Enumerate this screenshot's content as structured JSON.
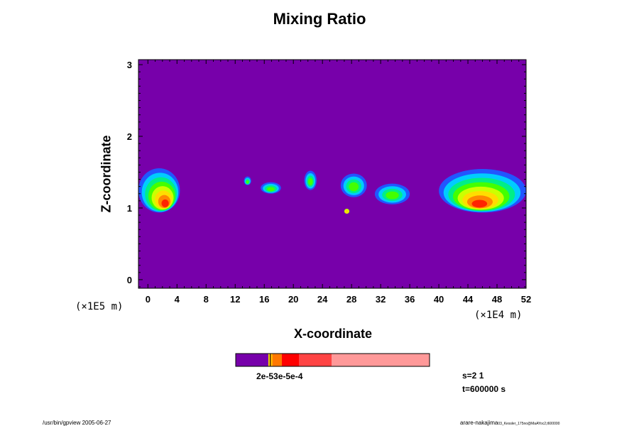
{
  "chart_data": {
    "type": "heatmap",
    "title": "Mixing Ratio",
    "xlabel": "X-coordinate",
    "ylabel": "Z-coordinate",
    "x_scale_label": "(×1E4 m)",
    "y_scale_label": "(×1E5 m)",
    "xlim": [
      -1.3,
      52
    ],
    "ylim": [
      -0.12,
      3.07
    ],
    "x_ticks": [
      "0",
      "4",
      "8",
      "12",
      "16",
      "20",
      "24",
      "28",
      "32",
      "36",
      "40",
      "44",
      "48",
      "52"
    ],
    "y_ticks": [
      "0",
      "1",
      "2",
      "3"
    ],
    "background_value": 0,
    "regions": [
      {
        "x_range": [
          -1.3,
          4.4
        ],
        "z_range": [
          0.92,
          1.57
        ],
        "peak": "1e-3"
      },
      {
        "x_range": [
          13.2,
          14.2
        ],
        "z_range": [
          1.32,
          1.44
        ],
        "peak": "1e-5"
      },
      {
        "x_range": [
          15.5,
          18.3
        ],
        "z_range": [
          1.2,
          1.36
        ],
        "peak": "1e-5"
      },
      {
        "x_range": [
          21.5,
          23.2
        ],
        "z_range": [
          1.25,
          1.52
        ],
        "peak": "1e-5"
      },
      {
        "x_range": [
          26.5,
          30.1
        ],
        "z_range": [
          1.15,
          1.48
        ],
        "peak": "1e-5"
      },
      {
        "x_range": [
          27.0,
          27.7
        ],
        "z_range": [
          0.92,
          0.99
        ],
        "peak": "2e-6"
      },
      {
        "x_range": [
          31.2,
          36.0
        ],
        "z_range": [
          1.05,
          1.34
        ],
        "peak": "1e-5"
      },
      {
        "x_range": [
          40.0,
          52.0
        ],
        "z_range": [
          0.92,
          1.56
        ],
        "peak": "1e-3"
      }
    ],
    "colorbar": {
      "colors": [
        "#7700aa",
        "#ffdd00",
        "#000000",
        "#ffaa00",
        "#ff7700",
        "#ff0000",
        "#ff4444",
        "#ff9999"
      ],
      "label": "2e-53e-5e-4"
    },
    "grid": false
  },
  "info": {
    "s_label": "s=2 1",
    "t_label": "t=600000 s"
  },
  "footer": {
    "left": "/usr/bin/gpview 2005-06-27",
    "right": "arare-nakajima",
    "right_small": "03_Kessler_175no@MaAYoc2,t600000"
  },
  "colors": {
    "background_fill": "#7700aa",
    "ramp": [
      "#7700aa",
      "#2255ff",
      "#00ccff",
      "#00ee88",
      "#44ff00",
      "#ccff00",
      "#ffdd00",
      "#ff8800",
      "#ff2200",
      "#ff7777"
    ]
  }
}
